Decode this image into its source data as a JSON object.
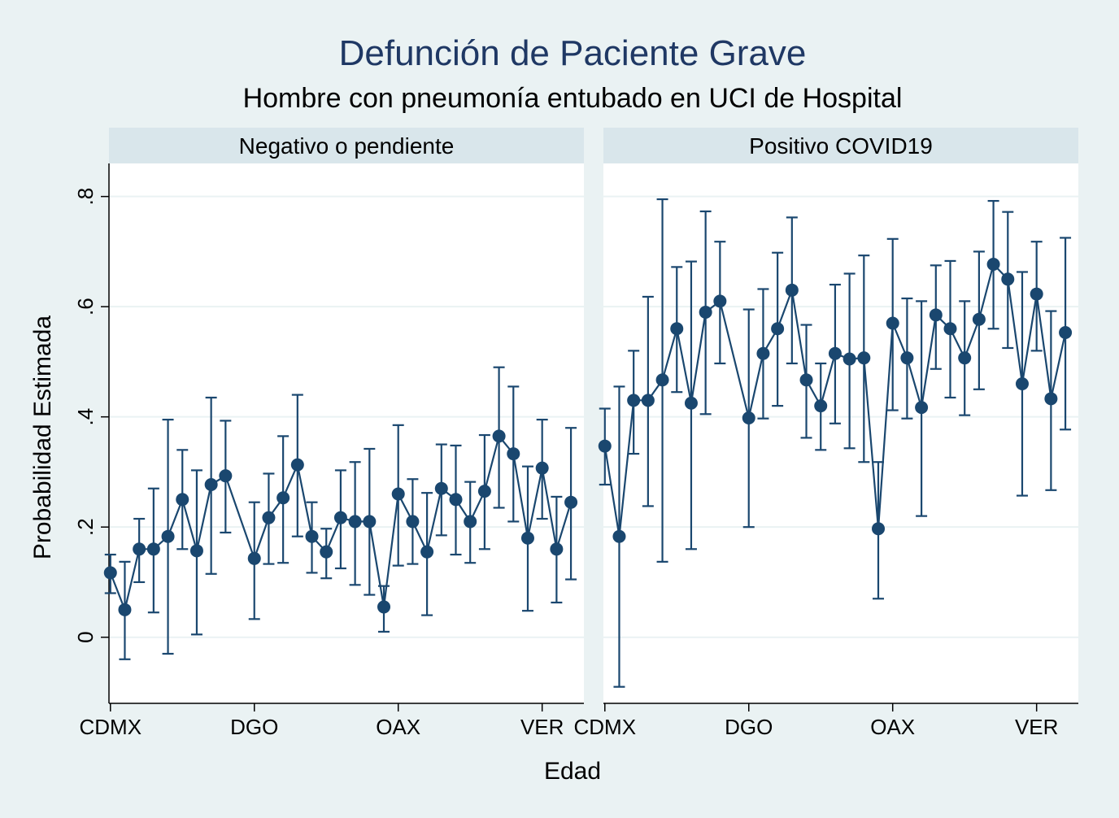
{
  "chart_data": {
    "type": "line",
    "title": "Defunción de Paciente Grave",
    "subtitle": "Hombre con pneumonía entubado en UCI de Hospital",
    "xlabel": "Edad",
    "ylabel": "Probabilidad Estimada",
    "ylim": [
      -0.12,
      0.86
    ],
    "yticks": [
      0,
      0.2,
      0.4,
      0.6,
      0.8
    ],
    "ytick_labels": [
      "0",
      ".2",
      ".4",
      ".6",
      ".8"
    ],
    "xlim": [
      0.9,
      33.9
    ],
    "xticks": [
      1,
      11,
      21,
      31
    ],
    "xtick_labels": [
      "CDMX",
      "DGO",
      "OAX",
      "VER"
    ],
    "grid": true,
    "colors": {
      "background": "#eaf2f3",
      "plot_area": "#ffffff",
      "strip": "#d9e6eb",
      "series": "#1a476f",
      "title": "#1f3864",
      "text": "#000000",
      "grid": "#eaf2f3"
    },
    "panels": [
      {
        "strip_label": "Negativo o pendiente",
        "x": [
          1,
          2,
          3,
          4,
          5,
          6,
          7,
          8,
          9,
          11,
          12,
          13,
          14,
          15,
          16,
          17,
          18,
          19,
          20,
          21,
          22,
          23,
          24,
          25,
          26,
          27,
          28,
          29,
          30,
          31,
          32,
          33
        ],
        "y": [
          0.117,
          0.05,
          0.16,
          0.16,
          0.183,
          0.25,
          0.157,
          0.277,
          0.293,
          0.143,
          0.217,
          0.253,
          0.313,
          0.183,
          0.155,
          0.217,
          0.21,
          0.21,
          0.055,
          0.26,
          0.21,
          0.155,
          0.27,
          0.25,
          0.21,
          0.265,
          0.365,
          0.333,
          0.18,
          0.307,
          0.16,
          0.245
        ],
        "lower": [
          0.08,
          -0.04,
          0.1,
          0.045,
          -0.03,
          0.16,
          0.005,
          0.115,
          0.19,
          0.033,
          0.133,
          0.135,
          0.183,
          0.117,
          0.107,
          0.125,
          0.095,
          0.077,
          0.01,
          0.13,
          0.133,
          0.04,
          0.185,
          0.15,
          0.135,
          0.16,
          0.235,
          0.21,
          0.048,
          0.215,
          0.063,
          0.105
        ],
        "upper": [
          0.15,
          0.137,
          0.215,
          0.27,
          0.395,
          0.34,
          0.303,
          0.435,
          0.393,
          0.245,
          0.297,
          0.365,
          0.44,
          0.245,
          0.197,
          0.303,
          0.318,
          0.342,
          0.093,
          0.385,
          0.287,
          0.262,
          0.35,
          0.348,
          0.282,
          0.367,
          0.49,
          0.455,
          0.31,
          0.395,
          0.255,
          0.38
        ]
      },
      {
        "strip_label": "Positivo COVID19",
        "x": [
          1,
          2,
          3,
          4,
          5,
          6,
          7,
          8,
          9,
          11,
          12,
          13,
          14,
          15,
          16,
          17,
          18,
          19,
          20,
          21,
          22,
          23,
          24,
          25,
          26,
          27,
          28,
          29,
          30,
          31,
          32,
          33
        ],
        "y": [
          0.347,
          0.183,
          0.43,
          0.43,
          0.467,
          0.56,
          0.425,
          0.59,
          0.61,
          0.398,
          0.515,
          0.56,
          0.63,
          0.467,
          0.42,
          0.515,
          0.505,
          0.507,
          0.197,
          0.57,
          0.507,
          0.417,
          0.585,
          0.56,
          0.507,
          0.577,
          0.677,
          0.65,
          0.46,
          0.623,
          0.433,
          0.553
        ],
        "lower": [
          0.277,
          -0.09,
          0.333,
          0.238,
          0.137,
          0.445,
          0.16,
          0.405,
          0.497,
          0.2,
          0.397,
          0.42,
          0.497,
          0.362,
          0.34,
          0.388,
          0.343,
          0.318,
          0.07,
          0.412,
          0.397,
          0.22,
          0.487,
          0.435,
          0.403,
          0.45,
          0.56,
          0.525,
          0.257,
          0.52,
          0.267,
          0.377
        ],
        "upper": [
          0.415,
          0.455,
          0.52,
          0.618,
          0.795,
          0.672,
          0.682,
          0.773,
          0.718,
          0.595,
          0.632,
          0.698,
          0.762,
          0.567,
          0.497,
          0.64,
          0.66,
          0.693,
          0.318,
          0.723,
          0.615,
          0.61,
          0.675,
          0.683,
          0.61,
          0.7,
          0.792,
          0.772,
          0.663,
          0.718,
          0.592,
          0.725
        ]
      }
    ]
  }
}
